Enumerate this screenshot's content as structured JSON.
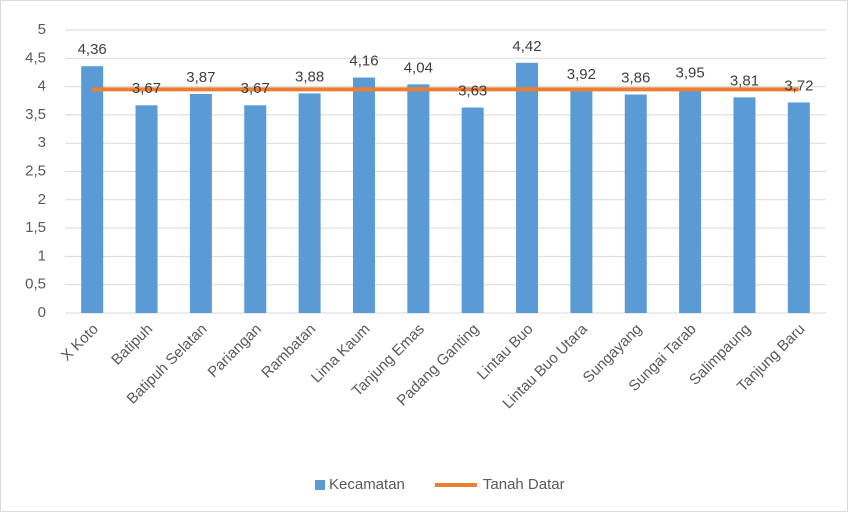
{
  "chart_data": {
    "type": "bar",
    "categories": [
      "X Koto",
      "Batipuh",
      "Batipuh Selatan",
      "Pariangan",
      "Rambatan",
      "Lima Kaum",
      "Tanjung Emas",
      "Padang Ganting",
      "Lintau Buo",
      "Lintau Buo Utara",
      "Sungayang",
      "Sungai Tarab",
      "Salimpaung",
      "Tanjung Baru"
    ],
    "series": [
      {
        "name": "Kecamatan",
        "color": "#5b9bd5",
        "values": [
          4.36,
          3.67,
          3.87,
          3.67,
          3.88,
          4.16,
          4.04,
          3.63,
          4.42,
          3.92,
          3.86,
          3.95,
          3.81,
          3.72
        ],
        "value_labels": [
          "4,36",
          "3,67",
          "3,87",
          "3,67",
          "3,88",
          "4,16",
          "4,04",
          "3,63",
          "4,42",
          "3,92",
          "3,86",
          "3,95",
          "3,81",
          "3,72"
        ]
      },
      {
        "name": "Tanah Datar",
        "color": "#ed7d31",
        "type": "line",
        "values": [
          3.95,
          3.95,
          3.95,
          3.95,
          3.95,
          3.95,
          3.95,
          3.95,
          3.95,
          3.95,
          3.95,
          3.95,
          3.95,
          3.95
        ]
      }
    ],
    "ylim": [
      0,
      5
    ],
    "yticks": [
      0,
      {
        "value": 0.5,
        "label": "0,5"
      },
      1,
      {
        "value": 1.5,
        "label": "1,5"
      },
      2,
      {
        "value": 2.5,
        "label": "2,5"
      },
      3,
      {
        "value": 3.5,
        "label": "3,5"
      },
      4,
      {
        "value": 4.5,
        "label": "4,5"
      },
      5
    ],
    "grid": true,
    "legend": "bottom"
  }
}
